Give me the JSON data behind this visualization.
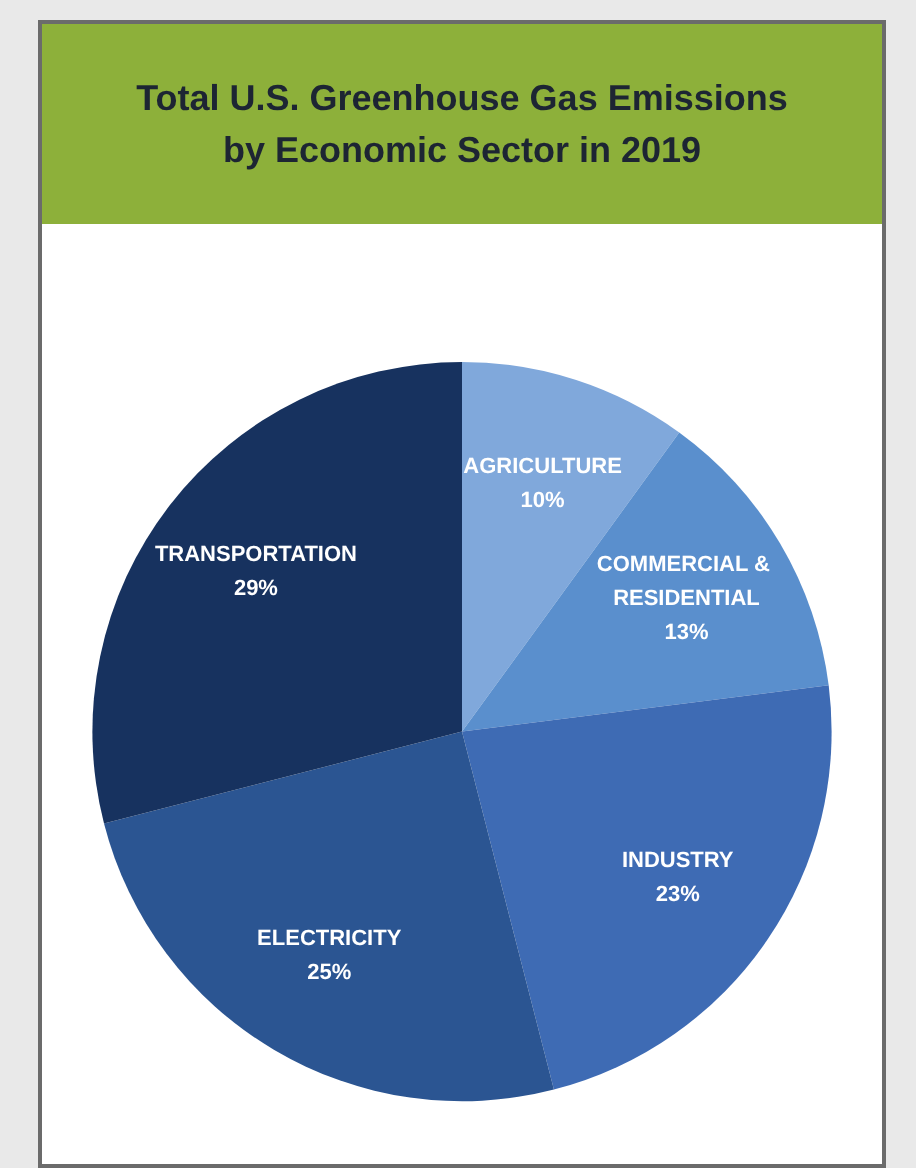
{
  "chart_data": {
    "type": "pie",
    "title": "Total U.S. Greenhouse Gas Emissions by Economic Sector in 2019",
    "categories": [
      "AGRICULTURE",
      "COMMERCIAL & RESIDENTIAL",
      "INDUSTRY",
      "ELECTRICITY",
      "TRANSPORTATION"
    ],
    "values": [
      10,
      13,
      23,
      25,
      29
    ],
    "value_labels": [
      "10%",
      "13%",
      "23%",
      "25%",
      "29%"
    ],
    "colors": [
      "#80a8db",
      "#5a8fcd",
      "#3e6bb4",
      "#2b5592",
      "#17325f"
    ]
  }
}
